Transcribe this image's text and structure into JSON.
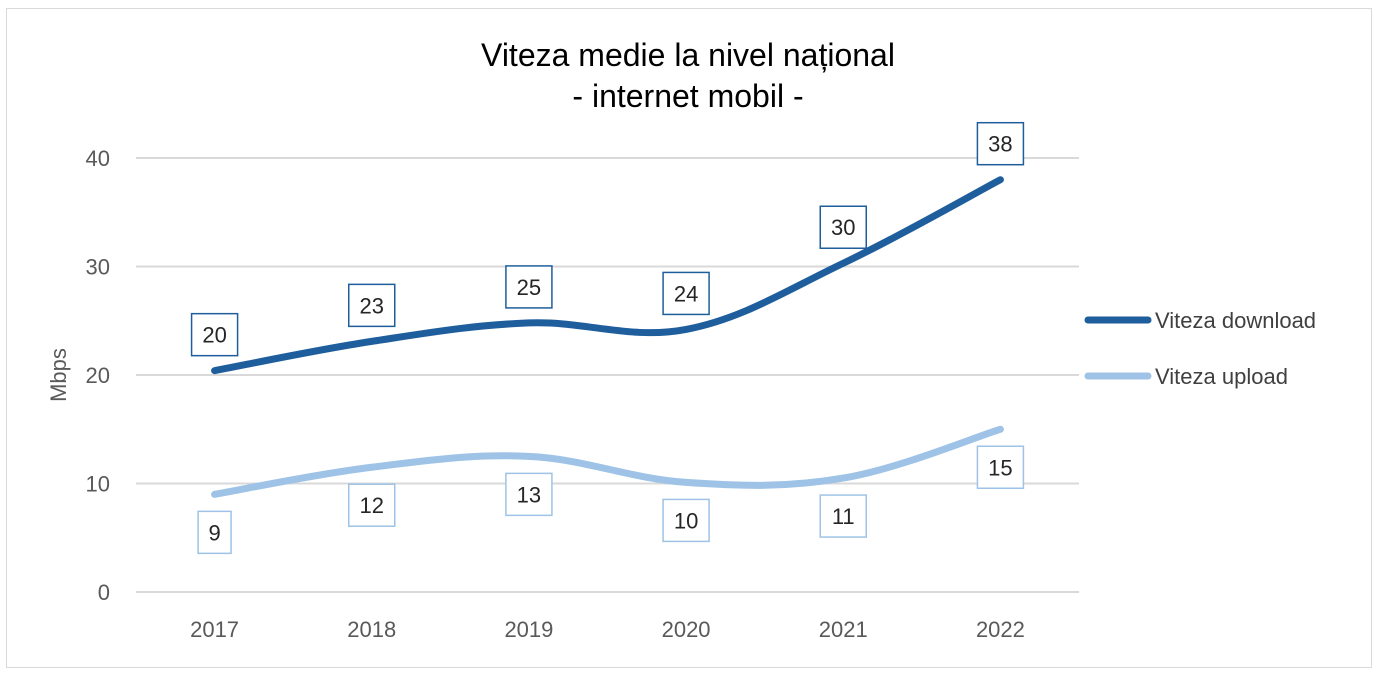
{
  "chart_data": {
    "type": "line",
    "title": [
      "Viteza medie la nivel național",
      "- internet mobil -"
    ],
    "xlabel": "",
    "ylabel": "Mbps",
    "categories": [
      "2017",
      "2018",
      "2019",
      "2020",
      "2021",
      "2022"
    ],
    "ylim": [
      0,
      40
    ],
    "yticks": [
      0,
      10,
      20,
      30,
      40
    ],
    "grid": true,
    "legend_position": "right",
    "series": [
      {
        "name": "Viteza download",
        "values": [
          20.4,
          23.1,
          24.8,
          24.2,
          30.3,
          38.0
        ],
        "labels": [
          "20",
          "23",
          "25",
          "24",
          "30",
          "38"
        ],
        "label_position": "above",
        "color": "#1f5e9c"
      },
      {
        "name": "Viteza upload",
        "values": [
          9.0,
          11.5,
          12.5,
          10.1,
          10.5,
          15.0
        ],
        "labels": [
          "9",
          "12",
          "13",
          "10",
          "11",
          "15"
        ],
        "label_position": "below",
        "color": "#9ec3e6"
      }
    ]
  }
}
